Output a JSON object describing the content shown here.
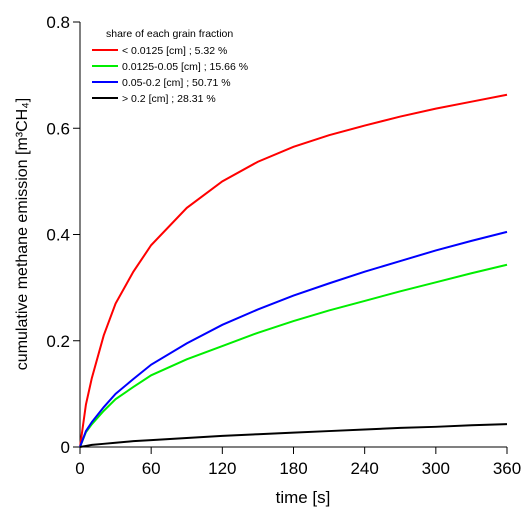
{
  "chart_data": {
    "type": "line",
    "x_label": "time [s]",
    "y_label": "cumulative methane emission [m³CH₄]",
    "legend_title": "share of each grain fraction",
    "legend": "upper left",
    "x": [
      0,
      5,
      10,
      20,
      30,
      45,
      60,
      90,
      120,
      150,
      180,
      210,
      240,
      270,
      300,
      330,
      360
    ],
    "series": [
      {
        "name": "< 0.0125 [cm] ; 5.32 %",
        "color": "#ff0000",
        "values": [
          0,
          0.08,
          0.13,
          0.21,
          0.27,
          0.33,
          0.38,
          0.45,
          0.5,
          0.537,
          0.565,
          0.587,
          0.605,
          0.622,
          0.637,
          0.65,
          0.663
        ]
      },
      {
        "name": "0.0125-0.05 [cm] ; 15.66 %",
        "color": "#00ee00",
        "values": [
          0,
          0.028,
          0.043,
          0.068,
          0.09,
          0.113,
          0.135,
          0.165,
          0.19,
          0.215,
          0.237,
          0.257,
          0.275,
          0.293,
          0.31,
          0.327,
          0.343
        ]
      },
      {
        "name": "0.05-0.2 [cm] ; 50.71 %",
        "color": "#0000ff",
        "values": [
          0,
          0.03,
          0.047,
          0.075,
          0.1,
          0.128,
          0.155,
          0.195,
          0.23,
          0.259,
          0.285,
          0.308,
          0.33,
          0.35,
          0.37,
          0.388,
          0.405
        ]
      },
      {
        "name": "> 0.2 [cm] ; 28.31 %",
        "color": "#000000",
        "values": [
          0,
          0.002,
          0.004,
          0.006,
          0.008,
          0.011,
          0.013,
          0.017,
          0.021,
          0.024,
          0.027,
          0.03,
          0.033,
          0.036,
          0.038,
          0.041,
          0.043
        ]
      }
    ],
    "xlim": [
      0,
      360
    ],
    "xticks": [
      0,
      60,
      120,
      180,
      240,
      300,
      360
    ],
    "ylim": [
      0,
      0.8
    ],
    "yticks": [
      0,
      0.2,
      0.4,
      0.6,
      0.8
    ]
  }
}
